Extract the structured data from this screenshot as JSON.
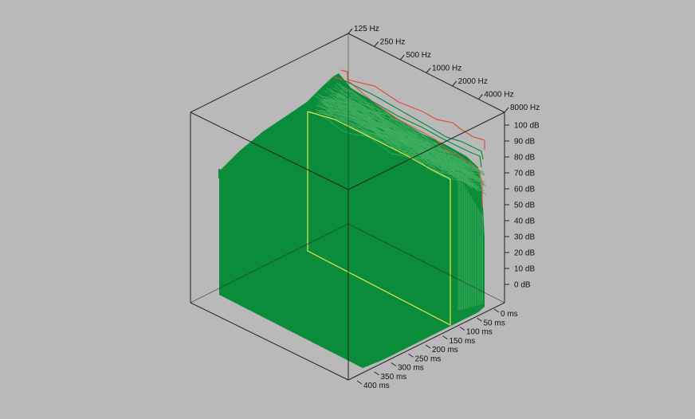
{
  "chart_data": {
    "type": "waterfall-3d",
    "colors": {
      "background": "#b9b9b9",
      "surface": "#0a8c3a",
      "surface_line": "#3fae5f",
      "highlight_line": "#e6e64a",
      "peak_line": "#e0503a",
      "box": "#222222"
    },
    "frequency_axis": {
      "scale": "log",
      "range": [
        125,
        8000
      ],
      "ticks": [
        {
          "value": 125,
          "label": "125 Hz"
        },
        {
          "value": 250,
          "label": "250 Hz"
        },
        {
          "value": 500,
          "label": "500 Hz"
        },
        {
          "value": 1000,
          "label": "1000 Hz"
        },
        {
          "value": 2000,
          "label": "2000 Hz"
        },
        {
          "value": 4000,
          "label": "4000 Hz"
        },
        {
          "value": 8000,
          "label": "8000 Hz"
        }
      ]
    },
    "level_axis": {
      "range": [
        0,
        100
      ],
      "ticks": [
        {
          "value": 100,
          "label": "100 dB"
        },
        {
          "value": 90,
          "label": "90 dB"
        },
        {
          "value": 80,
          "label": "80 dB"
        },
        {
          "value": 70,
          "label": "70 dB"
        },
        {
          "value": 60,
          "label": "60 dB"
        },
        {
          "value": 50,
          "label": "50 dB"
        },
        {
          "value": 40,
          "label": "40 dB"
        },
        {
          "value": 30,
          "label": "30 dB"
        },
        {
          "value": 20,
          "label": "20 dB"
        },
        {
          "value": 10,
          "label": "10 dB"
        },
        {
          "value": 0,
          "label": "0 dB"
        }
      ]
    },
    "time_axis": {
      "range": [
        0,
        400
      ],
      "ticks": [
        {
          "value": 0,
          "label": "0 ms"
        },
        {
          "value": 50,
          "label": "50 ms"
        },
        {
          "value": 100,
          "label": "100 ms"
        },
        {
          "value": 150,
          "label": "150 ms"
        },
        {
          "value": 200,
          "label": "200 ms"
        },
        {
          "value": 250,
          "label": "250 ms"
        },
        {
          "value": 300,
          "label": "300 ms"
        },
        {
          "value": 350,
          "label": "350 ms"
        },
        {
          "value": 400,
          "label": "400 ms"
        }
      ]
    },
    "series": [
      {
        "time_ms": 0,
        "role": "peak",
        "frequencies": [
          125,
          250,
          500,
          1000,
          2000,
          4000,
          5000,
          6000,
          8000
        ],
        "levels": [
          95,
          93,
          90,
          86,
          80,
          70,
          73,
          66,
          62
        ]
      },
      {
        "time_ms": 2,
        "role": "decay",
        "frequencies": [
          125,
          250,
          500,
          1000,
          2000,
          4000,
          5000,
          6000,
          8000
        ],
        "levels": [
          92,
          89,
          85,
          80,
          74,
          68,
          66,
          62,
          60
        ]
      },
      {
        "time_ms": 100,
        "role": "highlight",
        "frequencies": [
          125,
          250,
          500,
          1000,
          2000,
          4000,
          8000
        ],
        "levels": [
          88,
          85,
          80,
          73,
          66,
          60,
          57
        ]
      }
    ]
  }
}
